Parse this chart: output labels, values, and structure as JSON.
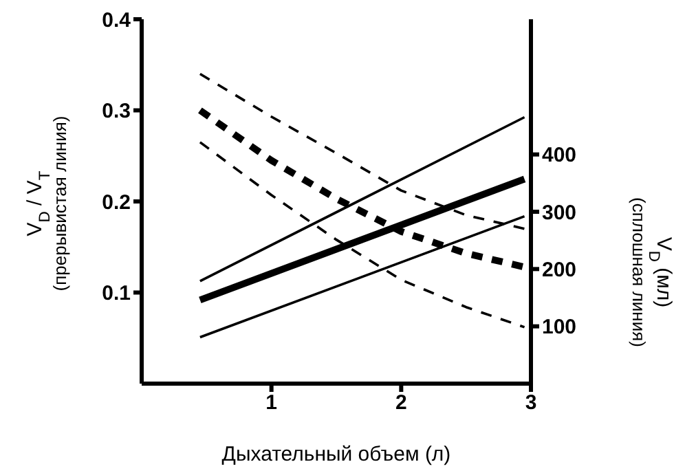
{
  "chart_data": {
    "type": "line",
    "xlabel": "Дыхательный объем (л)",
    "ylabel": "V$_{D}$ / V$_{T}$\n(прерывистая линия)",
    "y2label": "V$_{D}$ (мл)\n(сплошная линия)",
    "xlim": [
      0,
      3
    ],
    "xticks": [
      1,
      2,
      3
    ],
    "ylim": [
      0,
      0.4
    ],
    "yticks": [
      0.1,
      0.2,
      0.3,
      0.4
    ],
    "y2lim": [
      0,
      636
    ],
    "y2ticks": [
      100,
      200,
      300,
      400
    ],
    "grid": false,
    "legend": false,
    "marker": "none",
    "series": [
      {
        "color": "#000000",
        "line_style": "dashed",
        "x": [
          0.45,
          1,
          1.5,
          2,
          2.5,
          2.95
        ],
        "values": [
          0.34,
          0.293,
          0.253,
          0.212,
          0.185,
          0.17
        ]
      },
      {
        "color": "#000000",
        "line_style": "dashed",
        "x": [
          0.45,
          1,
          1.5,
          2,
          2.5,
          2.95
        ],
        "values": [
          0.3,
          0.245,
          0.203,
          0.167,
          0.143,
          0.128
        ]
      },
      {
        "color": "#000000",
        "line_style": "dashed",
        "x": [
          0.45,
          1,
          1.5,
          2,
          2.5,
          2.95
        ],
        "values": [
          0.265,
          0.207,
          0.158,
          0.114,
          0.084,
          0.062
        ]
      },
      {
        "color": "#000000",
        "line_style": "solid",
        "axis": "y2",
        "x": [
          0.45,
          2.95
        ],
        "values": [
          179,
          465
        ]
      },
      {
        "color": "#000000",
        "line_style": "solid",
        "axis": "y2",
        "x": [
          0.45,
          2.95
        ],
        "values": [
          146,
          357
        ]
      },
      {
        "color": "#000000",
        "line_style": "solid",
        "axis": "y2",
        "x": [
          0.45,
          2.95
        ],
        "values": [
          81,
          292
        ]
      }
    ]
  }
}
